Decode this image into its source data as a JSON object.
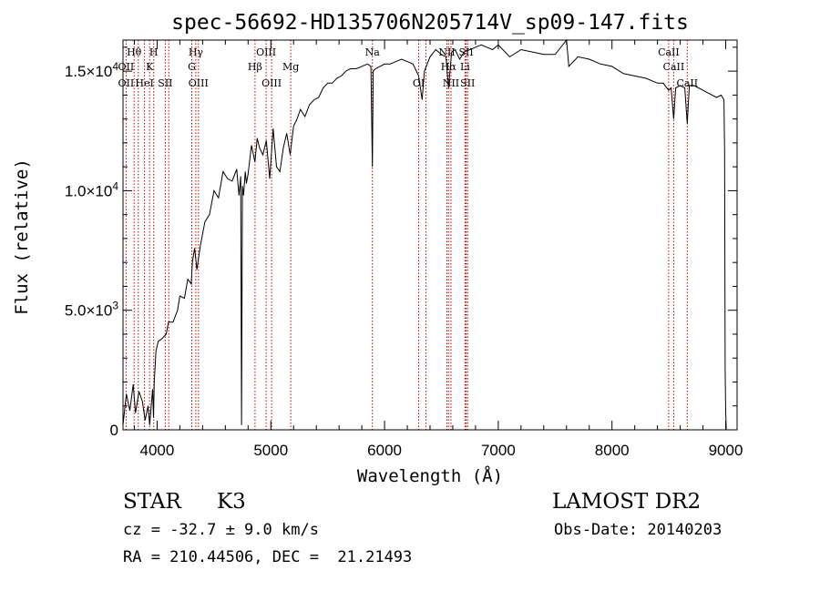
{
  "chart_data": {
    "type": "line",
    "title": "spec-56692-HD135706N205714V_sp09-147.fits",
    "xlabel": "Wavelength (Å)",
    "ylabel": "Flux (relative)",
    "xlim": [
      3700,
      9100
    ],
    "ylim": [
      0,
      16300
    ],
    "xticks": [
      4000,
      5000,
      6000,
      7000,
      8000,
      9000
    ],
    "xtick_labels": [
      "4000",
      "5000",
      "6000",
      "7000",
      "8000",
      "9000"
    ],
    "yticks": [
      0,
      5000,
      10000,
      15000
    ],
    "ytick_labels": [
      {
        "mant": "0",
        "exp": ""
      },
      {
        "mant": "5.0×10",
        "exp": "3"
      },
      {
        "mant": "1.0×10",
        "exp": "4"
      },
      {
        "mant": "1.5×10",
        "exp": "4"
      }
    ],
    "grid": false,
    "series": [
      {
        "color": "#000000",
        "x": [
          3700,
          3730,
          3760,
          3790,
          3810,
          3840,
          3870,
          3895,
          3920,
          3935,
          3960,
          3968,
          3975,
          3990,
          4010,
          4040,
          4080,
          4100,
          4140,
          4180,
          4200,
          4240,
          4270,
          4300,
          4310,
          4330,
          4350,
          4380,
          4420,
          4460,
          4500,
          4540,
          4580,
          4620,
          4660,
          4700,
          4720,
          4735,
          4742,
          4750,
          4760,
          4775,
          4785,
          4800,
          4830,
          4860,
          4880,
          4900,
          4930,
          4960,
          4990,
          5020,
          5050,
          5080,
          5110,
          5140,
          5170,
          5200,
          5230,
          5260,
          5300,
          5340,
          5380,
          5420,
          5460,
          5500,
          5540,
          5580,
          5620,
          5660,
          5700,
          5750,
          5800,
          5850,
          5880,
          5893,
          5900,
          5920,
          5960,
          6000,
          6050,
          6100,
          6150,
          6200,
          6250,
          6300,
          6330,
          6350,
          6400,
          6450,
          6500,
          6540,
          6563,
          6590,
          6620,
          6660,
          6700,
          6750,
          6800,
          6850,
          6900,
          6950,
          7000,
          7100,
          7200,
          7300,
          7400,
          7500,
          7600,
          7620,
          7700,
          7800,
          7900,
          8000,
          8100,
          8200,
          8300,
          8400,
          8450,
          8498,
          8520,
          8542,
          8560,
          8600,
          8640,
          8662,
          8680,
          8720,
          8760,
          8800,
          8840,
          8880,
          8920,
          8960,
          8985,
          8990,
          8995,
          9000,
          9005
        ],
        "y": [
          200,
          1500,
          800,
          1900,
          700,
          1600,
          1200,
          400,
          1000,
          200,
          1700,
          500,
          2000,
          3300,
          3700,
          3800,
          4000,
          4500,
          4500,
          5000,
          5600,
          5500,
          6300,
          6100,
          7000,
          7600,
          6700,
          7700,
          8700,
          9000,
          10000,
          9700,
          10800,
          10500,
          10400,
          10900,
          9800,
          10600,
          200,
          10200,
          9800,
          10800,
          10300,
          10700,
          11900,
          11200,
          12200,
          11800,
          11500,
          12100,
          10500,
          12600,
          11000,
          10800,
          11800,
          12400,
          11500,
          12700,
          13000,
          13400,
          13100,
          13600,
          13800,
          13900,
          14300,
          14500,
          14500,
          14700,
          14800,
          15000,
          15100,
          15100,
          15200,
          15300,
          15200,
          11000,
          15000,
          15100,
          15200,
          15300,
          15300,
          15400,
          15500,
          15400,
          15300,
          14800,
          13800,
          15000,
          15600,
          15900,
          15700,
          15600,
          14300,
          15800,
          15900,
          15500,
          15800,
          15900,
          16000,
          16100,
          16000,
          15900,
          16100,
          15600,
          15900,
          15800,
          15700,
          15700,
          16400,
          15200,
          15600,
          15500,
          15300,
          15200,
          14900,
          14800,
          14700,
          14500,
          14500,
          14200,
          14300,
          13000,
          14300,
          14400,
          14300,
          12800,
          14400,
          14400,
          14300,
          14200,
          14100,
          14000,
          13900,
          14000,
          13800,
          11600,
          2500,
          800,
          0
        ]
      }
    ],
    "line_markers": [
      {
        "x": 3798,
        "label": "Hθ",
        "row": 0
      },
      {
        "x": 3727,
        "label": "OII",
        "row": 1
      },
      {
        "x": 3727,
        "label": "OII",
        "row": 2
      },
      {
        "x": 3970,
        "label": "H",
        "row": 0
      },
      {
        "x": 3934,
        "label": "K",
        "row": 1
      },
      {
        "x": 3889,
        "label": "HeI",
        "row": 2
      },
      {
        "x": 4072,
        "label": "SII",
        "row": 2
      },
      {
        "x": 4340,
        "label": "Hγ",
        "row": 0
      },
      {
        "x": 4305,
        "label": "G",
        "row": 1
      },
      {
        "x": 4363,
        "label": "OIII",
        "row": 2
      },
      {
        "x": 4861,
        "label": "Hβ",
        "row": 1
      },
      {
        "x": 4959,
        "label": "OIII",
        "row": 0
      },
      {
        "x": 5007,
        "label": "OIII",
        "row": 2
      },
      {
        "x": 5175,
        "label": "Mg",
        "row": 1
      },
      {
        "x": 5893,
        "label": "Na",
        "row": 0
      },
      {
        "x": 6300,
        "label": "OI",
        "row": 2
      },
      {
        "x": 6548,
        "label": "NII",
        "row": 0
      },
      {
        "x": 6563,
        "label": "Hα",
        "row": 1
      },
      {
        "x": 6584,
        "label": "NII",
        "row": 2
      },
      {
        "x": 6717,
        "label": "SII",
        "row": 0
      },
      {
        "x": 6708,
        "label": "Li",
        "row": 1
      },
      {
        "x": 6731,
        "label": "SII",
        "row": 2
      },
      {
        "x": 8498,
        "label": "CaII",
        "row": 0
      },
      {
        "x": 8542,
        "label": "CaII",
        "row": 1
      },
      {
        "x": 8662,
        "label": "CaII",
        "row": 2
      }
    ],
    "extra_marker_lines": [
      3835,
      4102,
      6364,
      6716
    ]
  },
  "footer": {
    "object_type": "STAR",
    "subclass": "K3",
    "release": "LAMOST DR2",
    "cz": "cz = -32.7 ± 9.0 km/s",
    "obs_date": "Obs-Date: 20140203",
    "radec": "RA = 210.44506, DEC =  21.21493"
  }
}
